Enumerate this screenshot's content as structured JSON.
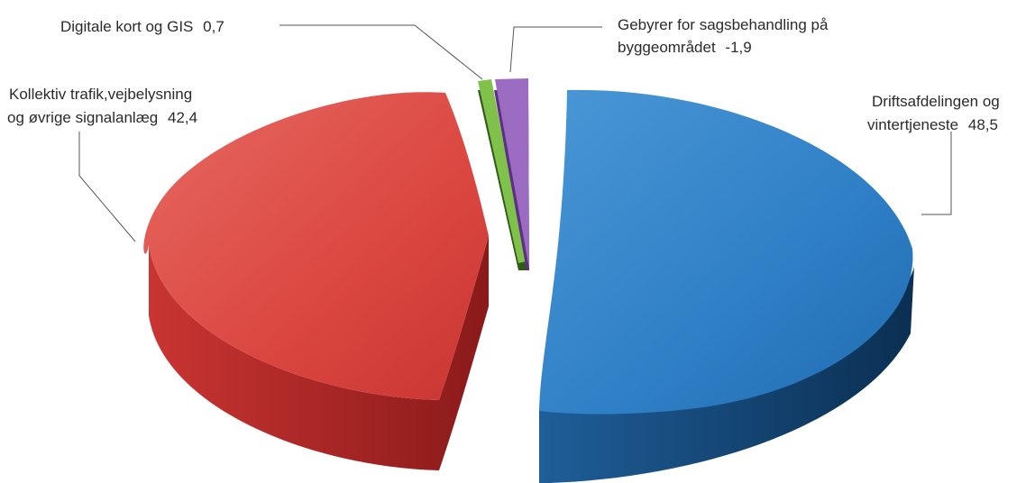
{
  "chart_data": {
    "type": "pie",
    "title": "",
    "slices": [
      {
        "label_lines": [
          "Driftsafdelingen og",
          "vintertjeneste"
        ],
        "value_text": "48,5",
        "value": 48.5,
        "color": "#2f7fc6",
        "side_color": "#0d3b66"
      },
      {
        "label_lines": [
          "Kollektiv trafik,vejbelysning",
          "og øvrige signalanlæg"
        ],
        "value_text": "42,4",
        "value": 42.4,
        "color": "#db4640",
        "side_color": "#a51f1f"
      },
      {
        "label_lines": [
          "Digitale kort og GIS"
        ],
        "value_text": "0,7",
        "value": 0.7,
        "color": "#7fc14a",
        "side_color": "#2f5a18"
      },
      {
        "label_lines": [
          "Gebyrer for sagsbehandling på",
          "byggeområdet"
        ],
        "value_text": "-1,9",
        "value": -1.9,
        "color": "#9b6cc2",
        "side_color": "#5c2f82"
      }
    ]
  }
}
